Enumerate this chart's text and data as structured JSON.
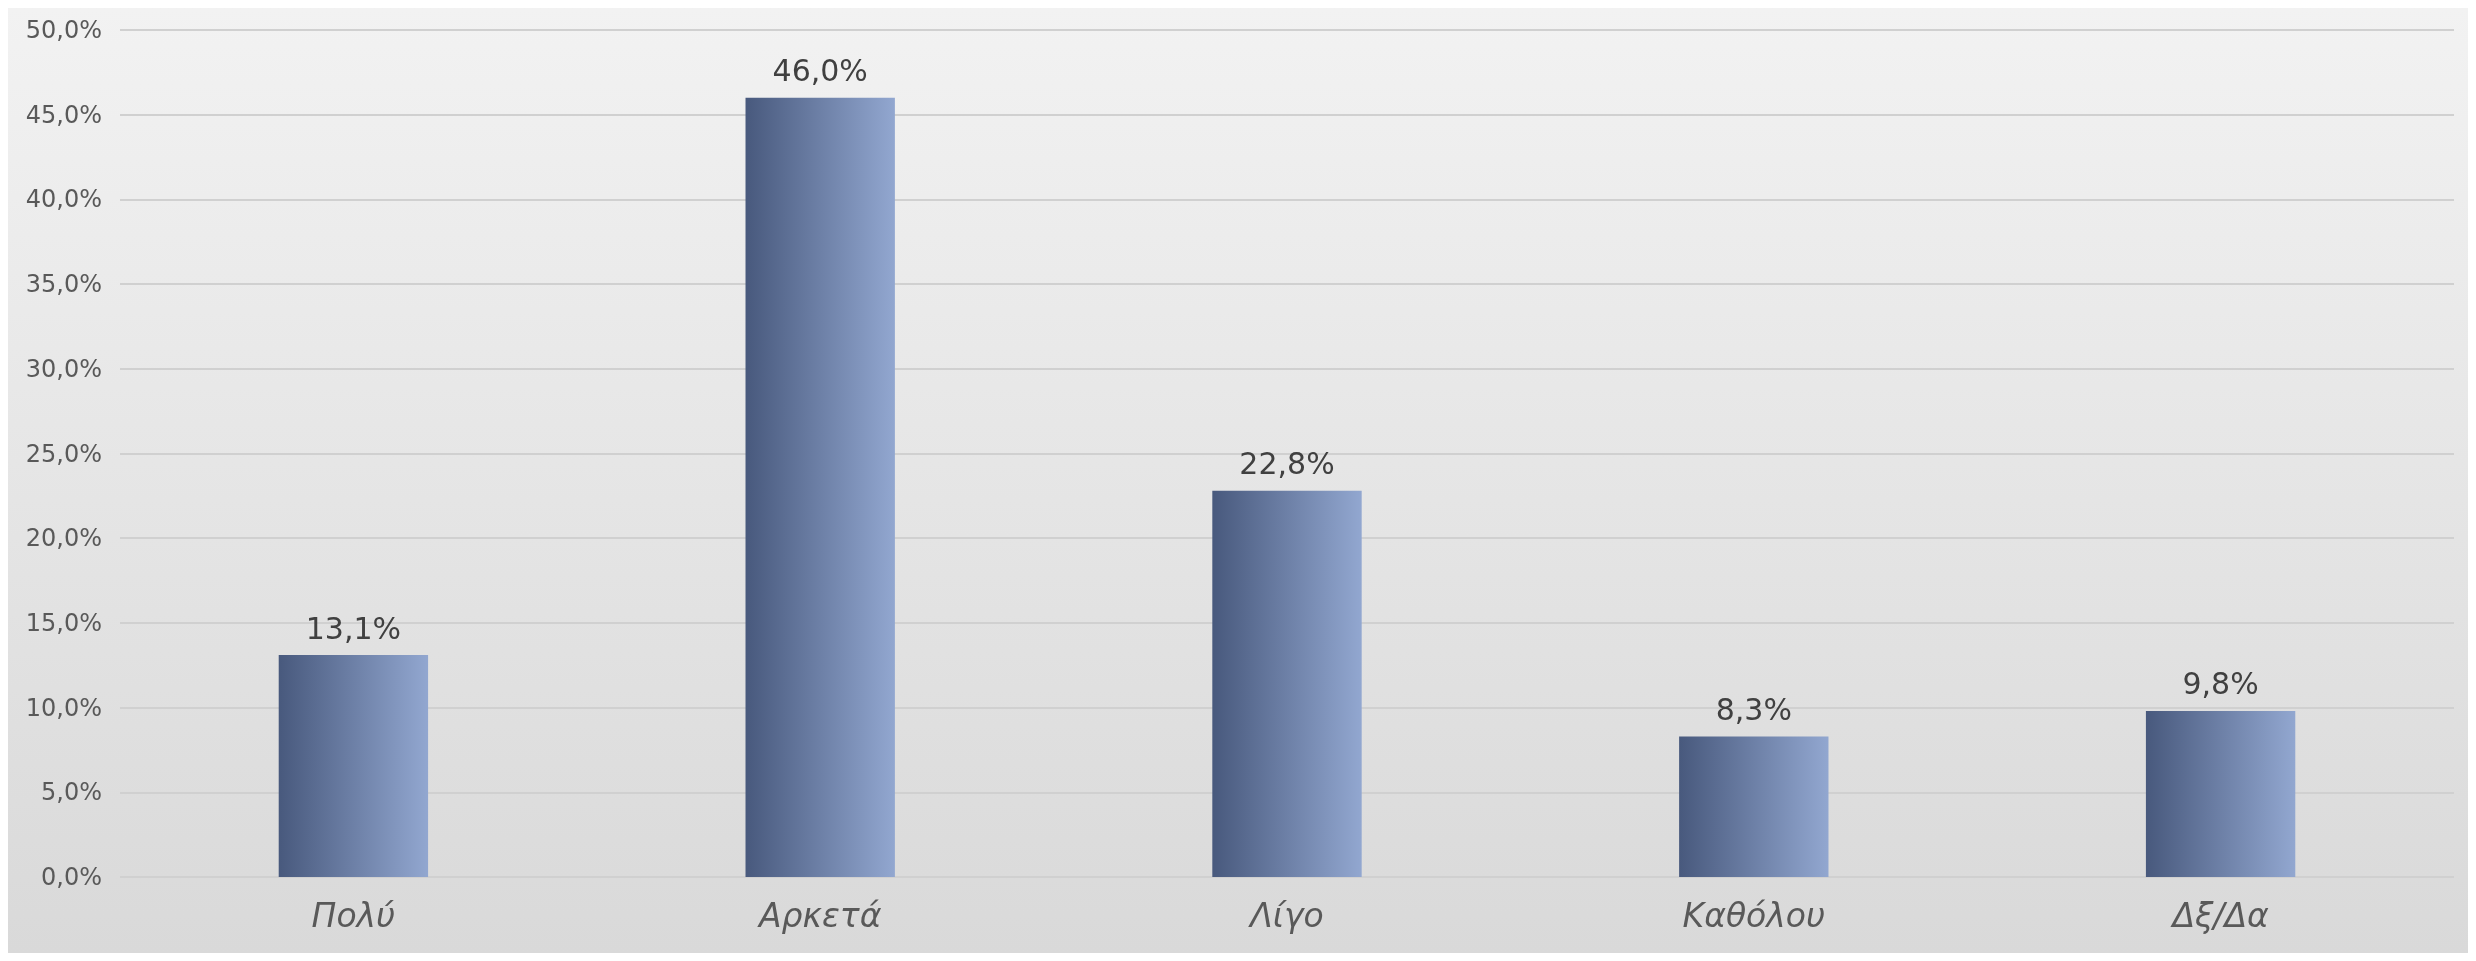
{
  "chart_data": {
    "type": "bar",
    "categories": [
      "Πολύ",
      "Αρκετά",
      "Λίγο",
      "Καθόλου",
      "Δξ/Δα"
    ],
    "values": [
      13.1,
      46.0,
      22.8,
      8.3,
      9.8
    ],
    "value_labels": [
      "13,1%",
      "46,0%",
      "22,8%",
      "8,3%",
      "9,8%"
    ],
    "color": "#6e89c0",
    "ylim": [
      0,
      50
    ],
    "yticks": [
      {
        "value": 0,
        "label": "0,0%"
      },
      {
        "value": 5,
        "label": "5,0%"
      },
      {
        "value": 10,
        "label": "10,0%"
      },
      {
        "value": 15,
        "label": "15,0%"
      },
      {
        "value": 20,
        "label": "20,0%"
      },
      {
        "value": 25,
        "label": "25,0%"
      },
      {
        "value": 30,
        "label": "30,0%"
      },
      {
        "value": 35,
        "label": "35,0%"
      },
      {
        "value": 40,
        "label": "40,0%"
      },
      {
        "value": 45,
        "label": "45,0%"
      },
      {
        "value": 50,
        "label": "50,0%"
      }
    ],
    "grid": "y"
  }
}
